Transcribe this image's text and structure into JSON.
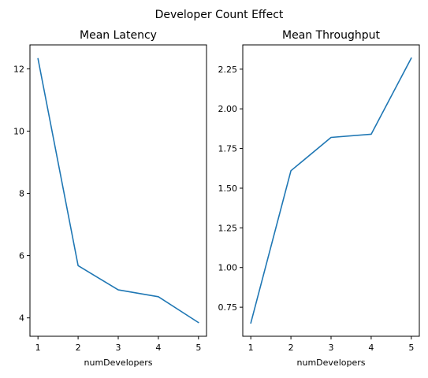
{
  "figure": {
    "suptitle": "Developer Count Effect"
  },
  "chart_data": [
    {
      "type": "line",
      "title": "Mean Latency",
      "xlabel": "numDevelopers",
      "ylabel": "",
      "x": [
        1,
        2,
        3,
        4,
        5
      ],
      "series": [
        {
          "values": [
            12.33,
            5.68,
            4.9,
            4.68,
            3.85
          ],
          "color": "#1f77b4"
        }
      ],
      "xlim": [
        0.8,
        5.2
      ],
      "ylim": [
        3.41,
        12.77
      ],
      "xticks": [
        1,
        2,
        3,
        4,
        5
      ],
      "yticks": [
        4,
        6,
        8,
        10,
        12
      ],
      "ytick_labels": [
        "4",
        "6",
        "8",
        "10",
        "12"
      ],
      "grid": false
    },
    {
      "type": "line",
      "title": "Mean Throughput",
      "xlabel": "numDevelopers",
      "ylabel": "",
      "x": [
        1,
        2,
        3,
        4,
        5
      ],
      "series": [
        {
          "values": [
            0.65,
            1.61,
            1.82,
            1.84,
            2.32
          ],
          "color": "#1f77b4"
        }
      ],
      "xlim": [
        0.8,
        5.2
      ],
      "ylim": [
        0.567,
        2.403
      ],
      "xticks": [
        1,
        2,
        3,
        4,
        5
      ],
      "yticks": [
        0.75,
        1.0,
        1.25,
        1.5,
        1.75,
        2.0,
        2.25
      ],
      "ytick_labels": [
        "0.75",
        "1.00",
        "1.25",
        "1.50",
        "1.75",
        "2.00",
        "2.25"
      ],
      "grid": false
    }
  ]
}
